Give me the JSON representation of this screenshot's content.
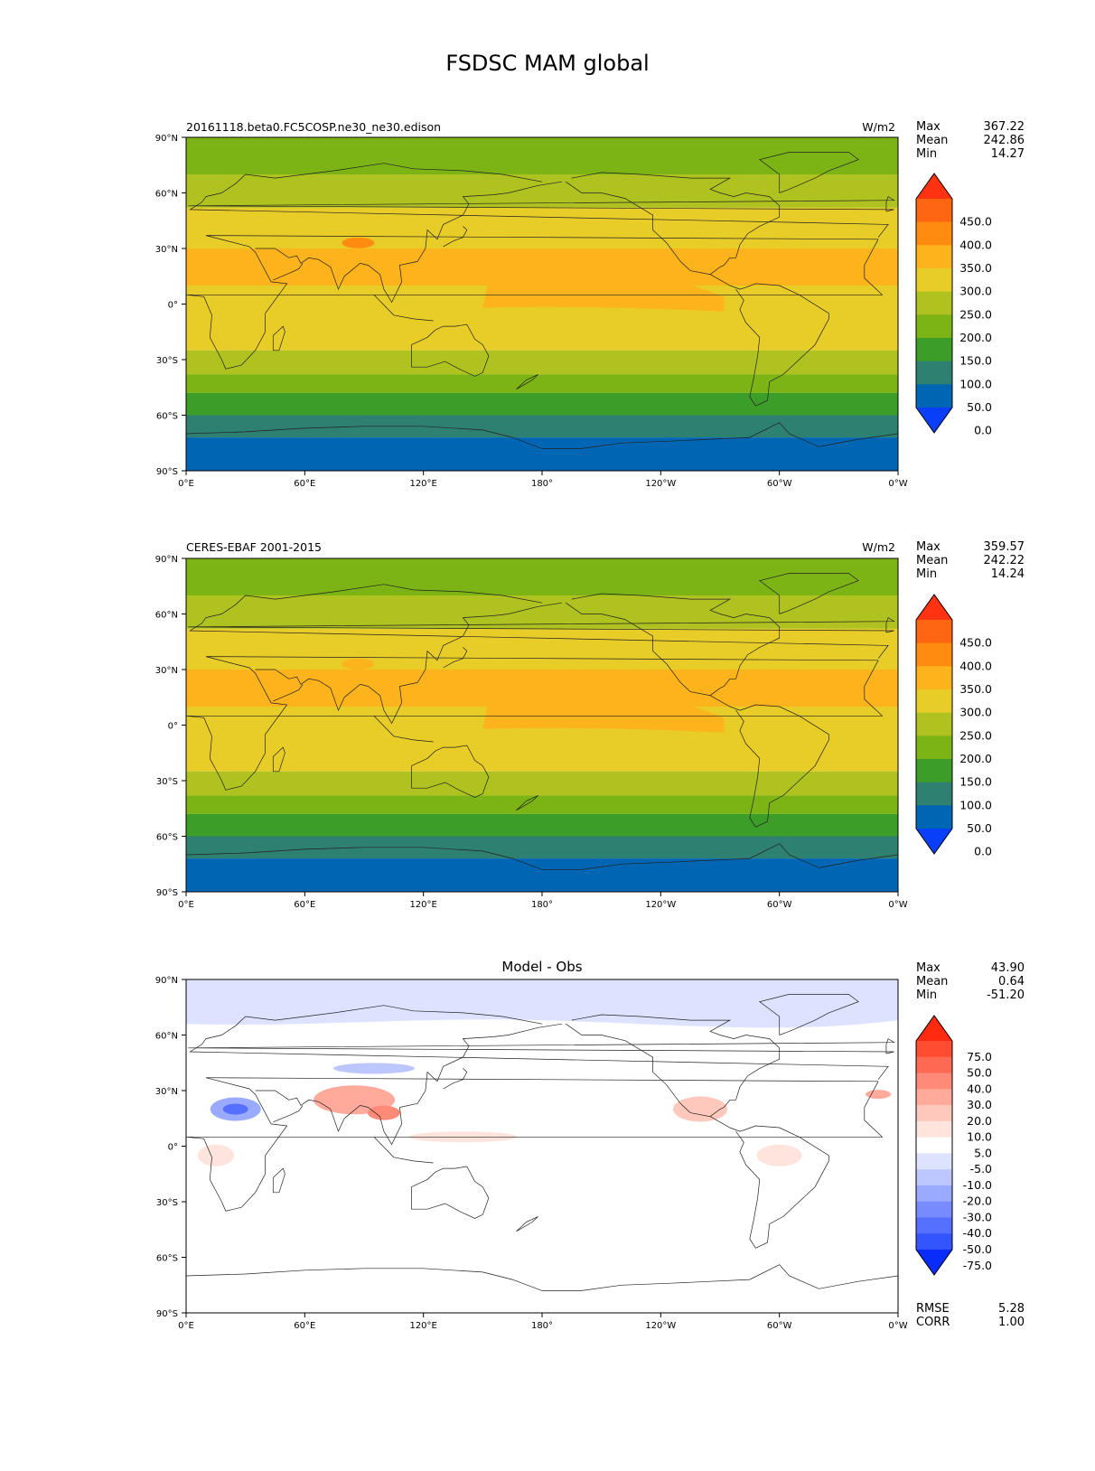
{
  "suptitle": "FSDSC MAM global",
  "x_ticks": [
    "0°E",
    "60°E",
    "120°E",
    "180°",
    "120°W",
    "60°W",
    "0°W"
  ],
  "y_ticks": [
    "90°N",
    "60°N",
    "30°N",
    "0°",
    "30°S",
    "60°S",
    "90°S"
  ],
  "panels": [
    {
      "left_title": "20161118.beta0.FC5COSP.ne30_ne30.edison",
      "right_title": "W/m2",
      "center_title": "",
      "stats": [
        {
          "label": "Max",
          "value": "367.22"
        },
        {
          "label": "Mean",
          "value": "242.86"
        },
        {
          "label": "Min",
          "value": "14.27"
        }
      ]
    },
    {
      "left_title": "CERES-EBAF 2001-2015",
      "right_title": "W/m2",
      "center_title": "",
      "stats": [
        {
          "label": "Max",
          "value": "359.57"
        },
        {
          "label": "Mean",
          "value": "242.22"
        },
        {
          "label": "Min",
          "value": "14.24"
        }
      ]
    },
    {
      "left_title": "",
      "right_title": "",
      "center_title": "Model - Obs",
      "stats": [
        {
          "label": "Max",
          "value": "43.90"
        },
        {
          "label": "Mean",
          "value": "0.64"
        },
        {
          "label": "Min",
          "value": "-51.20"
        }
      ],
      "extra_stats": [
        {
          "label": "RMSE",
          "value": "5.28"
        },
        {
          "label": "CORR",
          "value": "1.00"
        }
      ]
    }
  ],
  "colorbar_field": {
    "labels": [
      "450.0",
      "400.0",
      "350.0",
      "300.0",
      "250.0",
      "200.0",
      "150.0",
      "100.0",
      "50.0",
      "0.0"
    ],
    "colors_top_to_bottom": [
      "#ff3311",
      "#ff6611",
      "#ff8c11",
      "#fcb31c",
      "#e8cd28",
      "#b0c21f",
      "#7bb414",
      "#3c9e28",
      "#2e8070",
      "#0066b3",
      "#0a3ffa"
    ]
  },
  "colorbar_diff": {
    "labels": [
      "75.0",
      "50.0",
      "40.0",
      "30.0",
      "20.0",
      "10.0",
      "5.0",
      "-5.0",
      "-10.0",
      "-20.0",
      "-30.0",
      "-40.0",
      "-50.0",
      "-75.0"
    ],
    "colors_top_to_bottom": [
      "#ff2a10",
      "#ff4d32",
      "#ff6a55",
      "#ff8a78",
      "#ffaa9a",
      "#ffc8bc",
      "#ffe3dd",
      "#ffffff",
      "#dde3ff",
      "#bcc7ff",
      "#99aaff",
      "#778bff",
      "#5570ff",
      "#3355ff",
      "#0a2cfa"
    ]
  },
  "chart_data": [
    {
      "type": "heatmap",
      "title": "20161118.beta0.FC5COSP.ne30_ne30.edison",
      "units": "W/m2",
      "x_ticks": [
        "0°E",
        "60°E",
        "120°E",
        "180°",
        "120°W",
        "60°W",
        "0°W"
      ],
      "y_ticks": [
        "90°N",
        "60°N",
        "30°N",
        "0°",
        "30°S",
        "60°S",
        "90°S"
      ],
      "lat_bands": [
        {
          "lat_range": [
            70,
            90
          ],
          "value_range": [
            150,
            200
          ]
        },
        {
          "lat_range": [
            50,
            70
          ],
          "value_range": [
            200,
            250
          ]
        },
        {
          "lat_range": [
            15,
            50
          ],
          "value_range": [
            250,
            300
          ]
        },
        {
          "lat_range": [
            0,
            30
          ],
          "value_range": [
            300,
            350
          ]
        },
        {
          "lat_range": [
            -25,
            5
          ],
          "value_range": [
            250,
            300
          ]
        },
        {
          "lat_range": [
            -38,
            -25
          ],
          "value_range": [
            200,
            250
          ]
        },
        {
          "lat_range": [
            -48,
            -38
          ],
          "value_range": [
            150,
            200
          ]
        },
        {
          "lat_range": [
            -60,
            -48
          ],
          "value_range": [
            100,
            150
          ]
        },
        {
          "lat_range": [
            -72,
            -60
          ],
          "value_range": [
            50,
            100
          ]
        },
        {
          "lat_range": [
            -90,
            -72
          ],
          "value_range": [
            0,
            50
          ]
        }
      ],
      "colorbar_levels": [
        0,
        50,
        100,
        150,
        200,
        250,
        300,
        350,
        400,
        450
      ],
      "max": 367.22,
      "mean": 242.86,
      "min": 14.27
    },
    {
      "type": "heatmap",
      "title": "CERES-EBAF 2001-2015",
      "units": "W/m2",
      "x_ticks": [
        "0°E",
        "60°E",
        "120°E",
        "180°",
        "120°W",
        "60°W",
        "0°W"
      ],
      "y_ticks": [
        "90°N",
        "60°N",
        "30°N",
        "0°",
        "30°S",
        "60°S",
        "90°S"
      ],
      "lat_bands": [
        {
          "lat_range": [
            70,
            90
          ],
          "value_range": [
            150,
            200
          ]
        },
        {
          "lat_range": [
            50,
            70
          ],
          "value_range": [
            200,
            250
          ]
        },
        {
          "lat_range": [
            15,
            50
          ],
          "value_range": [
            250,
            300
          ]
        },
        {
          "lat_range": [
            0,
            30
          ],
          "value_range": [
            300,
            350
          ]
        },
        {
          "lat_range": [
            -25,
            5
          ],
          "value_range": [
            250,
            300
          ]
        },
        {
          "lat_range": [
            -38,
            -25
          ],
          "value_range": [
            200,
            250
          ]
        },
        {
          "lat_range": [
            -48,
            -38
          ],
          "value_range": [
            150,
            200
          ]
        },
        {
          "lat_range": [
            -60,
            -48
          ],
          "value_range": [
            100,
            150
          ]
        },
        {
          "lat_range": [
            -72,
            -60
          ],
          "value_range": [
            50,
            100
          ]
        },
        {
          "lat_range": [
            -90,
            -72
          ],
          "value_range": [
            0,
            50
          ]
        }
      ],
      "colorbar_levels": [
        0,
        50,
        100,
        150,
        200,
        250,
        300,
        350,
        400,
        450
      ],
      "max": 359.57,
      "mean": 242.22,
      "min": 14.24
    },
    {
      "type": "heatmap",
      "title": "Model - Obs",
      "x_ticks": [
        "0°E",
        "60°E",
        "120°E",
        "180°",
        "120°W",
        "60°W",
        "0°W"
      ],
      "y_ticks": [
        "90°N",
        "60°N",
        "30°N",
        "0°",
        "30°S",
        "60°S",
        "90°S"
      ],
      "colorbar_levels": [
        -75,
        -50,
        -40,
        -30,
        -20,
        -10,
        -5,
        5,
        10,
        20,
        30,
        40,
        50,
        75
      ],
      "max": 43.9,
      "mean": 0.64,
      "min": -51.2,
      "rmse": 5.28,
      "corr": 1.0
    }
  ]
}
